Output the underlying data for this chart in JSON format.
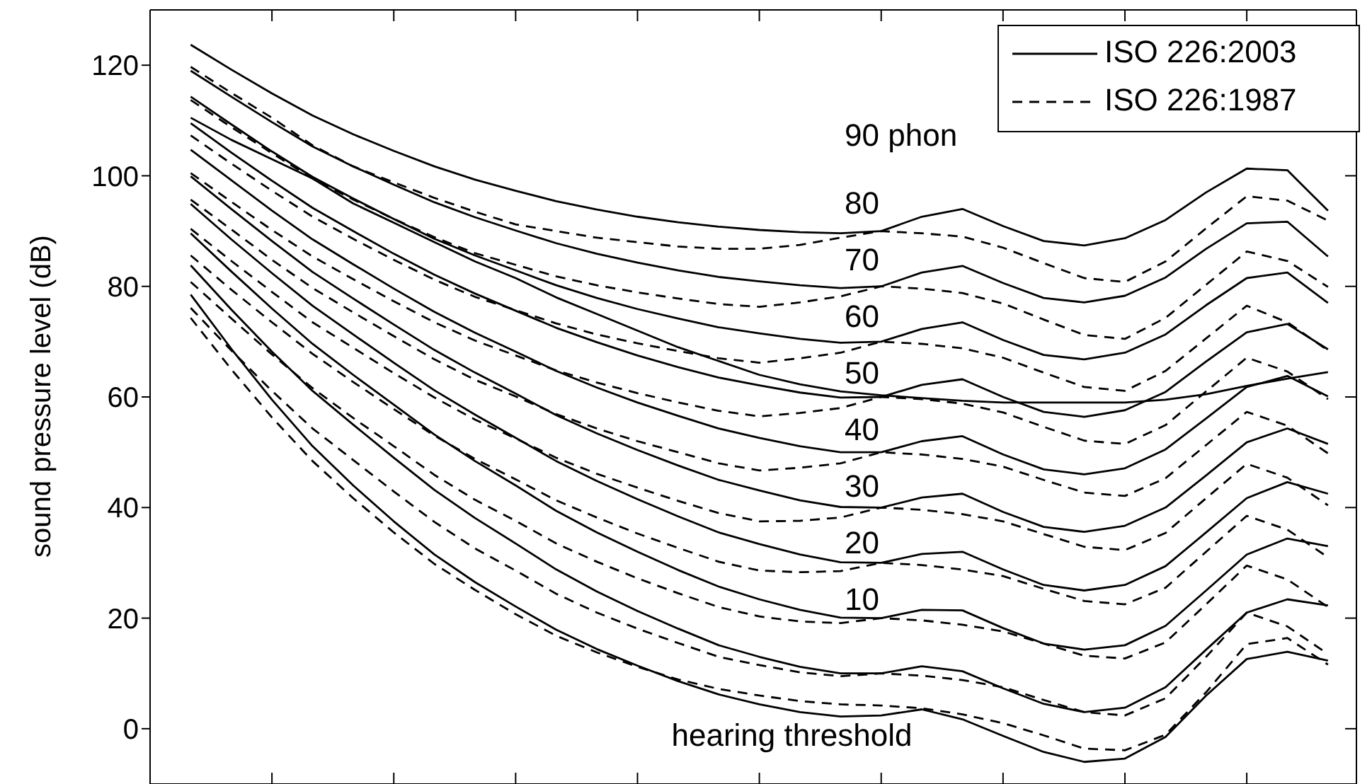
{
  "chart_data": {
    "type": "line",
    "ylabel": "sound pressure level (dB)",
    "categories": [
      null,
      null,
      null,
      null,
      null,
      null,
      null,
      null,
      null,
      null,
      null,
      null,
      null,
      null,
      null,
      null,
      null,
      null,
      null,
      null,
      null,
      null,
      null,
      null,
      null,
      null,
      null,
      null,
      null
    ],
    "ylim": [
      -10,
      130
    ],
    "yticks": [
      0,
      20,
      40,
      60,
      80,
      100,
      120
    ],
    "tick_labels": "y",
    "legend": "top right",
    "marker": "none",
    "series": [
      {
        "name": "ISO 226:2003",
        "color": "#000000",
        "line_style": "solid",
        "values": [
          78.5,
          68.7,
          59.5,
          51.1,
          44.0,
          37.5,
          31.5,
          26.5,
          22.1,
          17.9,
          14.4,
          11.4,
          8.6,
          6.2,
          4.4,
          3.0,
          2.2,
          2.4,
          3.5,
          1.7,
          -1.3,
          -4.2,
          -6.0,
          -5.4,
          -1.5,
          6.0,
          12.6,
          13.9,
          12.3
        ]
      },
      {
        "color": "#000000",
        "line_style": "solid",
        "values": [
          83.8,
          75.8,
          68.2,
          61.1,
          55.0,
          49.0,
          43.2,
          38.1,
          33.5,
          28.8,
          24.8,
          21.3,
          18.1,
          15.1,
          13.0,
          11.2,
          10.0,
          10,
          11.3,
          10.4,
          7.3,
          4.5,
          3.0,
          3.8,
          7.5,
          14.3,
          21.0,
          23.4,
          22.3
        ]
      },
      {
        "color": "#000000",
        "line_style": "solid",
        "values": [
          89.6,
          82.7,
          76.0,
          69.6,
          64.0,
          58.6,
          53.2,
          48.4,
          44.0,
          39.4,
          35.5,
          32.0,
          28.7,
          25.7,
          23.4,
          21.5,
          20.1,
          20,
          21.5,
          21.4,
          18.2,
          15.4,
          14.3,
          15.1,
          18.6,
          25.0,
          31.5,
          34.4,
          33.0
        ]
      },
      {
        "color": "#000000",
        "line_style": "solid",
        "values": [
          94.9,
          88.5,
          82.4,
          76.5,
          71.3,
          66.2,
          61.2,
          56.8,
          52.6,
          48.4,
          44.8,
          41.5,
          38.4,
          35.5,
          33.4,
          31.5,
          30.1,
          30,
          31.6,
          32.0,
          28.8,
          26.0,
          25.0,
          26.0,
          29.4,
          35.5,
          41.7,
          44.6,
          42.5
        ]
      },
      {
        "color": "#000000",
        "line_style": "solid",
        "values": [
          99.9,
          94.0,
          88.2,
          82.6,
          77.8,
          73.1,
          68.5,
          64.4,
          60.6,
          56.7,
          53.4,
          50.4,
          47.6,
          45.0,
          43.1,
          41.3,
          40.1,
          40,
          41.8,
          42.5,
          39.2,
          36.5,
          35.6,
          36.7,
          40.0,
          45.8,
          51.8,
          54.3,
          51.5
        ]
      },
      {
        "color": "#000000",
        "line_style": "solid",
        "values": [
          104.7,
          99.2,
          93.7,
          88.5,
          84.0,
          79.6,
          75.4,
          71.6,
          68.2,
          64.7,
          61.7,
          59.0,
          56.6,
          54.3,
          52.6,
          51.1,
          50.0,
          50,
          52.0,
          52.9,
          49.6,
          46.9,
          46.0,
          47.1,
          50.5,
          56.1,
          61.8,
          63.8,
          60.1
        ]
      },
      {
        "color": "#000000",
        "line_style": "solid",
        "values": [
          109.5,
          104.2,
          99.1,
          94.2,
          90.0,
          85.9,
          82.1,
          78.7,
          75.6,
          72.5,
          69.9,
          67.5,
          65.4,
          63.5,
          62.1,
          60.8,
          59.9,
          60,
          62.2,
          63.2,
          60.0,
          57.3,
          56.4,
          57.6,
          60.9,
          66.4,
          71.7,
          73.2,
          68.6
        ]
      },
      {
        "color": "#000000",
        "line_style": "solid",
        "values": [
          114.3,
          109.3,
          104.4,
          99.8,
          95.9,
          92.2,
          88.6,
          85.6,
          82.9,
          80.2,
          77.9,
          75.9,
          74.2,
          72.6,
          71.5,
          70.5,
          69.8,
          70,
          72.3,
          73.5,
          70.3,
          67.6,
          66.8,
          68.0,
          71.3,
          76.6,
          81.5,
          82.5,
          77.0
        ]
      },
      {
        "color": "#000000",
        "line_style": "solid",
        "values": [
          119.0,
          114.3,
          109.7,
          105.3,
          101.7,
          98.4,
          95.2,
          92.5,
          90.1,
          87.8,
          85.9,
          84.3,
          82.9,
          81.7,
          80.9,
          80.2,
          79.7,
          80,
          82.5,
          83.7,
          80.6,
          77.9,
          77.1,
          78.3,
          81.6,
          86.8,
          91.4,
          91.7,
          85.4
        ]
      },
      {
        "color": "#000000",
        "line_style": "solid",
        "values": [
          123.7,
          119.2,
          114.9,
          110.9,
          107.5,
          104.5,
          101.7,
          99.3,
          97.3,
          95.4,
          93.9,
          92.6,
          91.6,
          90.8,
          90.2,
          89.8,
          89.6,
          90,
          92.6,
          94.0,
          90.9,
          88.2,
          87.4,
          88.7,
          92.0,
          97.0,
          101.3,
          101.0,
          93.7
        ]
      },
      {
        "name": "ISO 226:1987",
        "color": "#000000",
        "line_style": "dashed",
        "values": [
          74.3,
          65.0,
          56.3,
          48.4,
          41.7,
          35.5,
          29.8,
          25.1,
          20.7,
          16.8,
          13.8,
          11.2,
          8.9,
          7.2,
          6.0,
          5.0,
          4.4,
          4.2,
          3.7,
          2.6,
          1.0,
          -1.2,
          -3.6,
          -3.9,
          -1.1,
          6.6,
          15.3,
          16.4,
          11.6
        ]
      },
      {
        "color": "#000000",
        "line_style": "dashed",
        "values": [
          76.1,
          68.4,
          61.1,
          54.3,
          48.6,
          42.9,
          37.4,
          32.6,
          28.6,
          24.4,
          21.0,
          18.1,
          15.5,
          13.0,
          11.5,
          10.2,
          9.5,
          10,
          9.6,
          8.8,
          7.5,
          5.2,
          3.0,
          2.4,
          5.5,
          13.0,
          21.0,
          18.5,
          13.5
        ]
      },
      {
        "color": "#000000",
        "line_style": "dashed",
        "values": [
          80.8,
          74.2,
          67.7,
          61.6,
          56.2,
          51.1,
          45.9,
          41.4,
          37.6,
          33.5,
          30.2,
          27.2,
          24.5,
          22.0,
          20.3,
          19.4,
          19.1,
          20,
          19.6,
          18.8,
          17.6,
          15.4,
          13.2,
          12.7,
          15.6,
          22.5,
          29.5,
          27.0,
          22.0
        ]
      },
      {
        "color": "#000000",
        "line_style": "dashed",
        "values": [
          85.6,
          79.4,
          73.5,
          67.8,
          62.7,
          57.8,
          53.0,
          48.8,
          45.1,
          41.3,
          38.2,
          35.3,
          32.7,
          30.2,
          28.6,
          28.3,
          28.5,
          30,
          29.6,
          28.8,
          27.6,
          25.3,
          23.1,
          22.5,
          25.5,
          32.0,
          38.5,
          36.0,
          31.0
        ]
      },
      {
        "color": "#000000",
        "line_style": "dashed",
        "values": [
          90.4,
          84.6,
          79.0,
          73.5,
          68.9,
          64.3,
          59.9,
          55.9,
          52.5,
          49.0,
          46.1,
          43.6,
          41.2,
          39.0,
          37.5,
          37.6,
          38.2,
          40,
          39.6,
          38.8,
          37.5,
          35.2,
          32.9,
          32.3,
          35.4,
          41.7,
          47.9,
          45.4,
          40.4
        ]
      },
      {
        "color": "#000000",
        "line_style": "dashed",
        "values": [
          95.7,
          90.3,
          84.8,
          79.7,
          75.3,
          71.0,
          66.8,
          63.1,
          60.1,
          56.9,
          54.3,
          52.0,
          50.0,
          48.0,
          46.7,
          47.2,
          48.0,
          50,
          49.6,
          48.8,
          47.4,
          45.0,
          42.7,
          42.1,
          45.3,
          51.3,
          57.3,
          54.8,
          49.8
        ]
      },
      {
        "color": "#000000",
        "line_style": "dashed",
        "values": [
          100.5,
          95.3,
          90.2,
          85.4,
          81.3,
          77.3,
          73.5,
          70.2,
          67.5,
          64.8,
          62.6,
          60.7,
          59.0,
          57.5,
          56.5,
          57.1,
          58.0,
          60,
          59.6,
          58.8,
          57.2,
          54.6,
          52.1,
          51.5,
          54.9,
          61.0,
          67.1,
          64.6,
          59.6
        ]
      },
      {
        "color": "#000000",
        "line_style": "dashed",
        "values": [
          107.3,
          102.2,
          97.3,
          92.6,
          88.6,
          84.8,
          81.2,
          78.1,
          75.7,
          73.3,
          71.3,
          69.7,
          68.3,
          67.0,
          66.2,
          67.0,
          68.0,
          70,
          69.6,
          68.8,
          67.1,
          64.4,
          61.8,
          61.1,
          64.7,
          70.6,
          76.5,
          73.5,
          68.4
        ]
      },
      {
        "color": "#000000",
        "line_style": "dashed",
        "values": [
          113.7,
          108.8,
          104.1,
          99.5,
          95.7,
          92.2,
          88.9,
          86.0,
          83.9,
          81.8,
          80.2,
          78.9,
          77.8,
          76.8,
          76.3,
          77.1,
          78.2,
          80,
          79.6,
          78.8,
          76.9,
          74.0,
          71.2,
          70.5,
          74.3,
          80.3,
          86.3,
          84.6,
          79.9
        ]
      },
      {
        "color": "#000000",
        "line_style": "dashed",
        "values": [
          119.7,
          115.0,
          110.5,
          105.5,
          101.7,
          98.8,
          96.0,
          93.5,
          91.2,
          90.0,
          88.8,
          88.0,
          87.2,
          86.8,
          86.8,
          87.5,
          88.8,
          90,
          89.6,
          89.0,
          87.0,
          84.2,
          81.5,
          80.8,
          84.5,
          90.5,
          96.3,
          95.5,
          91.9
        ]
      },
      {
        "color": "#000000",
        "line_style": "solid",
        "values": [
          110.5,
          106.5,
          103,
          99.5,
          95,
          91.5,
          88,
          84.5,
          81.5,
          78,
          75,
          72,
          69,
          66.5,
          64,
          62.3,
          61,
          60.3,
          59.8,
          59.3,
          59,
          59,
          59,
          59,
          59.5,
          60.5,
          62,
          63.3,
          64.5
        ]
      }
    ],
    "annotations": [
      "90 phon",
      "80",
      "70",
      "60",
      "50",
      "40",
      "30",
      "20",
      "10",
      "hearing threshold"
    ]
  }
}
